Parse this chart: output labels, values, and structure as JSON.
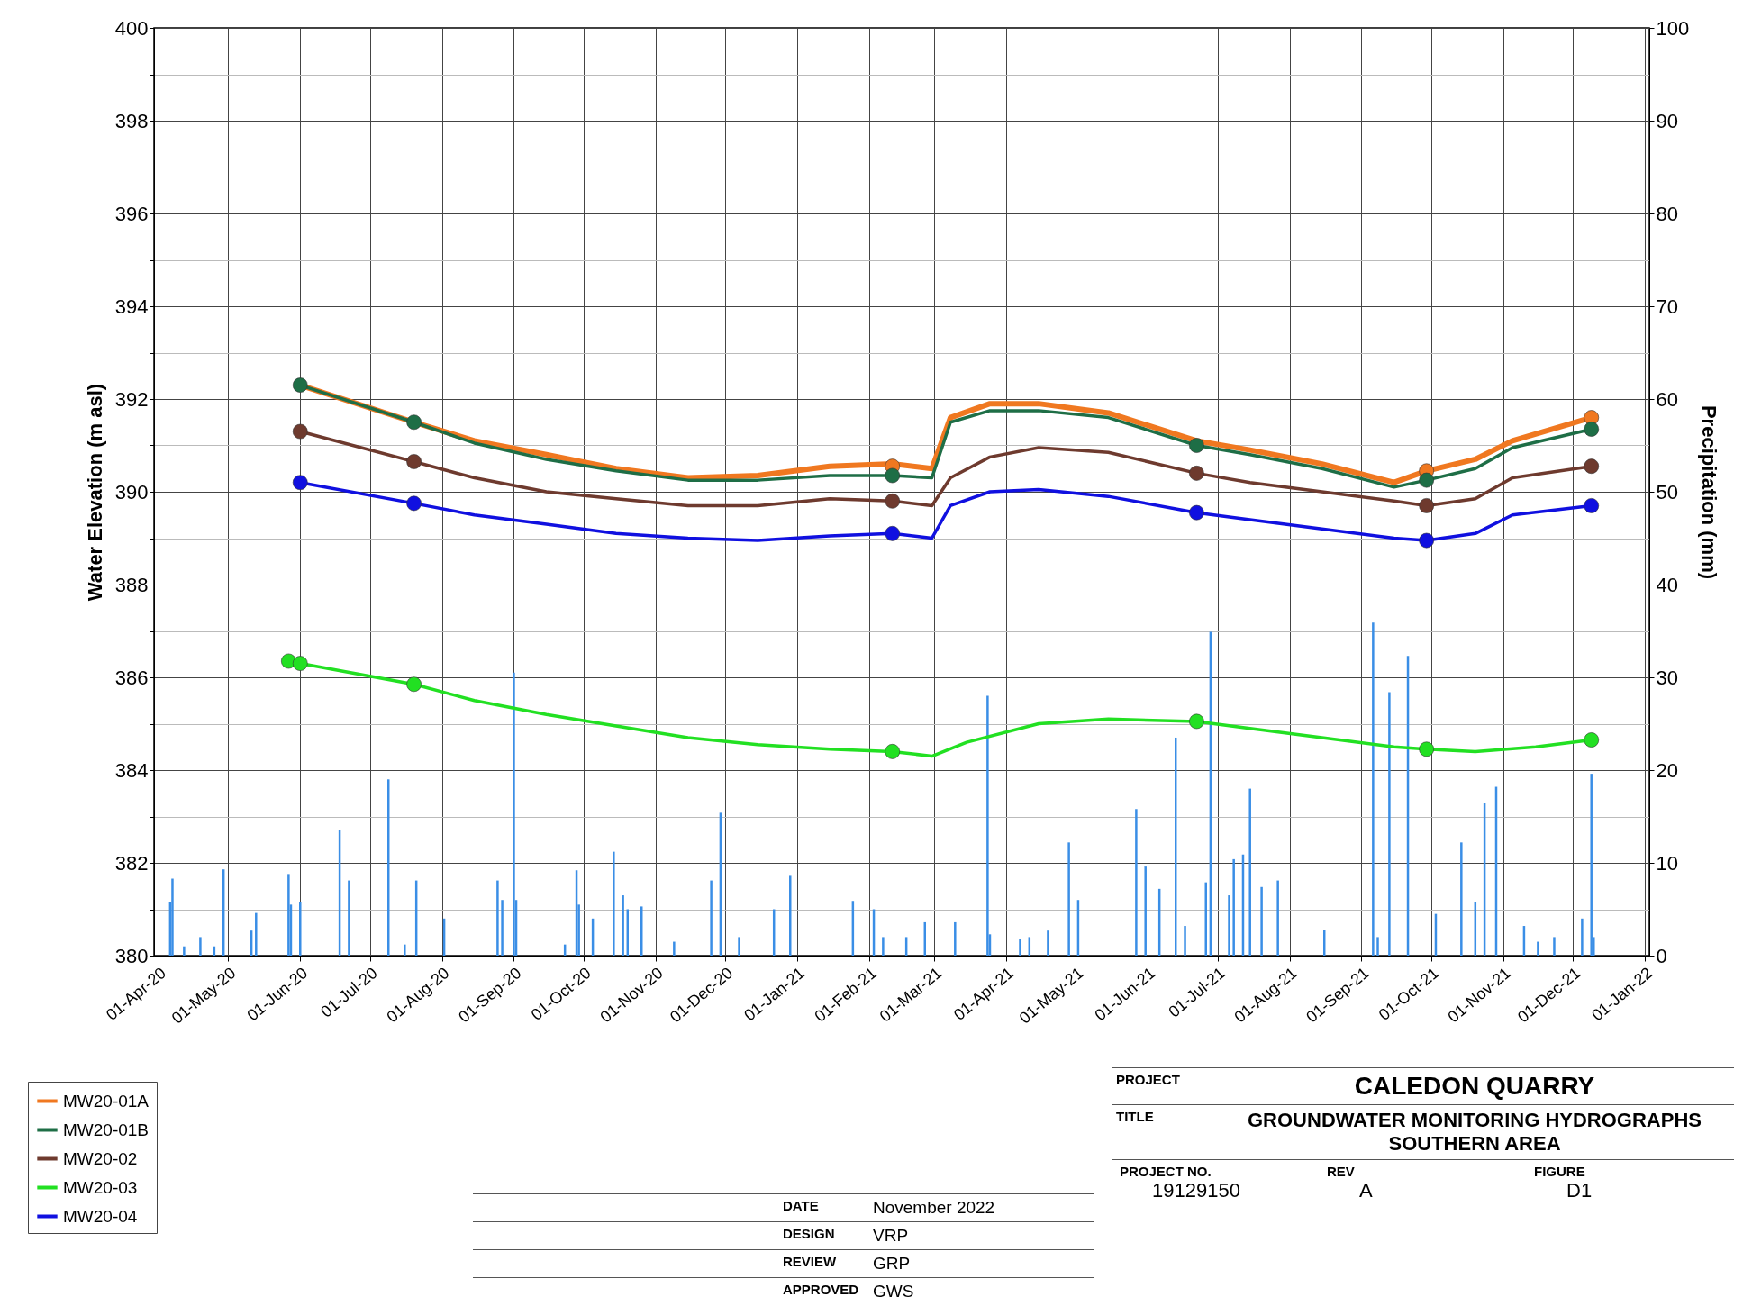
{
  "chart_data": {
    "type": "line",
    "xlabel": null,
    "ylabel": "Water Elevation (m asl)",
    "y2label": "Precipitation (mm)",
    "xlim": [
      "2020-04-01",
      "2022-01-01"
    ],
    "xticks": [
      {
        "value": "2020-04-01",
        "label": "01-Apr-20"
      },
      {
        "value": "2020-05-01",
        "label": "01-May-20"
      },
      {
        "value": "2020-06-01",
        "label": "01-Jun-20"
      },
      {
        "value": "2020-07-01",
        "label": "01-Jul-20"
      },
      {
        "value": "2020-08-01",
        "label": "01-Aug-20"
      },
      {
        "value": "2020-09-01",
        "label": "01-Sep-20"
      },
      {
        "value": "2020-10-01",
        "label": "01-Oct-20"
      },
      {
        "value": "2020-11-01",
        "label": "01-Nov-20"
      },
      {
        "value": "2020-12-01",
        "label": "01-Dec-20"
      },
      {
        "value": "2021-01-01",
        "label": "01-Jan-21"
      },
      {
        "value": "2021-02-01",
        "label": "01-Feb-21"
      },
      {
        "value": "2021-03-01",
        "label": "01-Mar-21"
      },
      {
        "value": "2021-04-01",
        "label": "01-Apr-21"
      },
      {
        "value": "2021-05-01",
        "label": "01-May-21"
      },
      {
        "value": "2021-06-01",
        "label": "01-Jun-21"
      },
      {
        "value": "2021-07-01",
        "label": "01-Jul-21"
      },
      {
        "value": "2021-08-01",
        "label": "01-Aug-21"
      },
      {
        "value": "2021-09-01",
        "label": "01-Sep-21"
      },
      {
        "value": "2021-10-01",
        "label": "01-Oct-21"
      },
      {
        "value": "2021-11-01",
        "label": "01-Nov-21"
      },
      {
        "value": "2021-12-01",
        "label": "01-Dec-21"
      },
      {
        "value": "2022-01-01",
        "label": "01-Jan-22"
      }
    ],
    "ylim": [
      380,
      400
    ],
    "yticks": [
      380,
      {
        "value": 381,
        "label": null
      },
      382,
      {
        "value": 383,
        "label": null
      },
      384,
      {
        "value": 385,
        "label": null
      },
      386,
      {
        "value": 387,
        "label": null
      },
      388,
      {
        "value": 389,
        "label": null
      },
      390,
      {
        "value": 391,
        "label": null
      },
      392,
      {
        "value": 393,
        "label": null
      },
      394,
      {
        "value": 395,
        "label": null
      },
      396,
      {
        "value": 397,
        "label": null
      },
      398,
      {
        "value": 399,
        "label": null
      },
      400
    ],
    "y2lim": [
      0,
      100
    ],
    "y2ticks": [
      0,
      10,
      20,
      30,
      40,
      50,
      60,
      70,
      80,
      90,
      100
    ],
    "grid": true,
    "legend": "bottom left",
    "x": [
      "2020-06-01",
      "2020-07-20",
      "2020-08-15",
      "2020-09-15",
      "2020-10-15",
      "2020-11-15",
      "2020-12-15",
      "2021-01-15",
      "2021-02-11",
      "2021-02-28",
      "2021-03-08",
      "2021-03-25",
      "2021-04-15",
      "2021-05-15",
      "2021-06-22",
      "2021-07-15",
      "2021-08-15",
      "2021-09-15",
      "2021-09-29",
      "2021-10-20",
      "2021-11-05",
      "2021-12-09"
    ],
    "series": [
      {
        "type": "bar",
        "axis": "y2",
        "color": "#3a8ee6",
        "x": [
          "2020-04-06",
          "2020-04-07",
          "2020-04-12",
          "2020-04-19",
          "2020-04-25",
          "2020-04-29",
          "2020-05-11",
          "2020-05-13",
          "2020-05-27",
          "2020-05-28",
          "2020-06-01",
          "2020-06-18",
          "2020-06-22",
          "2020-07-09",
          "2020-07-16",
          "2020-07-21",
          "2020-08-02",
          "2020-08-25",
          "2020-08-27",
          "2020-09-01",
          "2020-09-02",
          "2020-09-23",
          "2020-09-28",
          "2020-09-29",
          "2020-10-05",
          "2020-10-14",
          "2020-10-18",
          "2020-10-20",
          "2020-10-26",
          "2020-11-09",
          "2020-11-25",
          "2020-11-29",
          "2020-12-07",
          "2020-12-22",
          "2020-12-29",
          "2021-01-25",
          "2021-02-03",
          "2021-02-07",
          "2021-02-17",
          "2021-02-25",
          "2021-03-10",
          "2021-03-24",
          "2021-03-25",
          "2021-04-07",
          "2021-04-11",
          "2021-04-19",
          "2021-04-28",
          "2021-05-02",
          "2021-05-27",
          "2021-05-31",
          "2021-06-06",
          "2021-06-13",
          "2021-06-17",
          "2021-06-26",
          "2021-06-28",
          "2021-07-06",
          "2021-07-08",
          "2021-07-12",
          "2021-07-15",
          "2021-07-20",
          "2021-07-27",
          "2021-08-16",
          "2021-09-06",
          "2021-09-08",
          "2021-09-13",
          "2021-09-21",
          "2021-10-03",
          "2021-10-14",
          "2021-10-20",
          "2021-10-24",
          "2021-10-29",
          "2021-11-10",
          "2021-11-16",
          "2021-11-23",
          "2021-12-05",
          "2021-12-09",
          "2021-12-10"
        ],
        "values": [
          5.8,
          8.3,
          1,
          2,
          1,
          9.3,
          2.7,
          4.6,
          8.8,
          5.5,
          5.8,
          13.5,
          8.1,
          19,
          1.2,
          8.1,
          4,
          8.1,
          6,
          30.5,
          6,
          1.2,
          9.2,
          5.5,
          4,
          11.2,
          6.5,
          5,
          5.3,
          1.5,
          8.1,
          15.4,
          2,
          5,
          8.6,
          5.9,
          5,
          2,
          2,
          3.6,
          3.6,
          28,
          2.3,
          1.8,
          2,
          2.7,
          12.2,
          6,
          15.8,
          9.6,
          7.2,
          23.5,
          3.2,
          7.9,
          34.9,
          6.5,
          10.4,
          10.9,
          18,
          7.4,
          8.1,
          2.8,
          35.9,
          2,
          28.4,
          32.3,
          4.5,
          12.2,
          5.8,
          16.5,
          18.2,
          3.2,
          1.5,
          2,
          4,
          19.6,
          2
        ]
      },
      {
        "name": "MW20-01A",
        "color": "#f07820",
        "values": [
          392.3,
          391.5,
          391.1,
          390.8,
          390.5,
          390.3,
          390.35,
          390.55,
          390.6,
          390.5,
          391.6,
          391.9,
          391.9,
          391.7,
          391.1,
          390.9,
          390.6,
          390.2,
          390.45,
          390.7,
          391.1,
          391.6
        ]
      },
      {
        "name": "MW20-01B",
        "color": "#1e6e46",
        "values": [
          392.3,
          391.5,
          391.05,
          390.7,
          390.45,
          390.25,
          390.25,
          390.35,
          390.35,
          390.3,
          391.5,
          391.75,
          391.75,
          391.6,
          391.0,
          390.8,
          390.5,
          390.1,
          390.25,
          390.5,
          390.95,
          391.35
        ]
      },
      {
        "name": "MW20-02",
        "color": "#6e3a2e",
        "values": [
          391.3,
          390.65,
          390.3,
          390.0,
          389.85,
          389.7,
          389.7,
          389.85,
          389.8,
          389.7,
          390.3,
          390.75,
          390.95,
          390.85,
          390.4,
          390.2,
          390.0,
          389.8,
          389.7,
          389.85,
          390.3,
          390.55
        ]
      },
      {
        "name": "MW20-03",
        "color": "#22e022",
        "x": [
          "2020-05-27",
          "2020-06-01",
          "2020-07-20",
          "2020-08-15",
          "2020-09-15",
          "2020-10-15",
          "2020-11-15",
          "2020-12-15",
          "2021-01-15",
          "2021-02-11",
          "2021-02-28",
          "2021-03-15",
          "2021-04-15",
          "2021-05-15",
          "2021-06-22",
          "2021-07-15",
          "2021-08-15",
          "2021-09-15",
          "2021-09-29",
          "2021-10-20",
          "2021-11-15",
          "2021-12-09"
        ],
        "values": [
          386.35,
          386.3,
          385.85,
          385.5,
          385.2,
          384.95,
          384.7,
          384.55,
          384.45,
          384.4,
          384.3,
          384.6,
          385.0,
          385.1,
          385.05,
          384.9,
          384.7,
          384.5,
          384.45,
          384.4,
          384.5,
          384.65
        ]
      },
      {
        "name": "MW20-04",
        "color": "#1010e0",
        "values": [
          390.2,
          389.75,
          389.5,
          389.3,
          389.1,
          389.0,
          388.95,
          389.05,
          389.1,
          389.0,
          389.7,
          390.0,
          390.05,
          389.9,
          389.55,
          389.4,
          389.2,
          389.0,
          388.95,
          389.1,
          389.5,
          389.7
        ]
      },
      {
        "type": "scatter",
        "color": "#f07820",
        "x": [
          "2021-02-11",
          "2021-09-29",
          "2021-12-09"
        ],
        "values": [
          390.55,
          390.45,
          391.6
        ]
      },
      {
        "type": "scatter",
        "color": "#1e6e46",
        "x": [
          "2020-06-01",
          "2020-07-20",
          "2021-02-11",
          "2021-06-22",
          "2021-09-29",
          "2021-12-09"
        ],
        "values": [
          392.3,
          391.5,
          390.35,
          391.0,
          390.25,
          391.35
        ]
      },
      {
        "type": "scatter",
        "color": "#6e3a2e",
        "x": [
          "2020-06-01",
          "2020-07-20",
          "2021-02-11",
          "2021-06-22",
          "2021-09-29",
          "2021-12-09"
        ],
        "values": [
          391.3,
          390.65,
          389.8,
          390.4,
          389.7,
          390.55
        ]
      },
      {
        "type": "scatter",
        "color": "#22e022",
        "x": [
          "2020-05-27",
          "2020-06-01",
          "2020-07-20",
          "2021-02-11",
          "2021-06-22",
          "2021-09-29",
          "2021-12-09"
        ],
        "values": [
          386.35,
          386.3,
          385.85,
          384.4,
          385.05,
          384.45,
          384.65
        ]
      },
      {
        "type": "scatter",
        "color": "#1010e0",
        "x": [
          "2020-06-01",
          "2020-07-20",
          "2021-02-11",
          "2021-06-22",
          "2021-09-29",
          "2021-12-09"
        ],
        "values": [
          390.2,
          389.75,
          389.1,
          389.55,
          388.95,
          389.7
        ]
      }
    ],
    "annotations": [
      "PROJECT",
      "CALEDON QUARRY",
      "TITLE",
      "GROUNDWATER MONITORING HYDROGRAPHS SOUTHERN AREA",
      "DATE",
      "November 2022",
      "DESIGN",
      "VRP",
      "REVIEW",
      "GRP",
      "APPROVED",
      "GWS",
      "PROJECT NO.",
      "19129150",
      "REV",
      "A",
      "FIGURE",
      "D1"
    ]
  }
}
